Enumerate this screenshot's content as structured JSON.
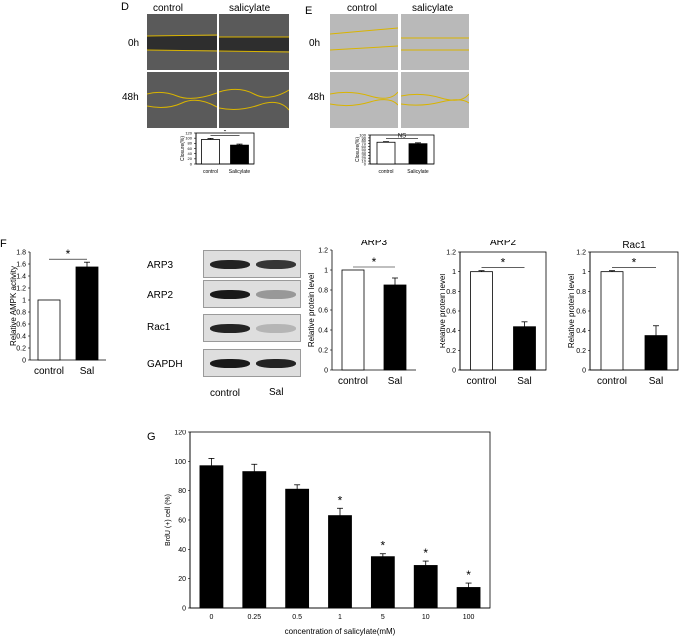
{
  "panel_D": {
    "letter": "D",
    "columns": [
      "control",
      "salicylate"
    ],
    "rows": [
      "0h",
      "48h"
    ]
  },
  "panel_E": {
    "letter": "E",
    "columns": [
      "control",
      "salicylate"
    ],
    "rows": [
      "0h",
      "48h"
    ]
  },
  "panel_F": {
    "letter": "F"
  },
  "panel_G": {
    "letter": "G"
  },
  "blot": {
    "labels": [
      "ARP3",
      "ARP2",
      "Rac1",
      "GAPDH"
    ],
    "lanes": [
      "control",
      "Sal"
    ],
    "intensities": {
      "ARP3": [
        0.95,
        0.85
      ],
      "ARP2": [
        1.0,
        0.35
      ],
      "Rac1": [
        0.95,
        0.2
      ],
      "GAPDH": [
        1.0,
        0.95
      ]
    }
  },
  "colors": {
    "control_bar": "#ffffff",
    "treated_bar": "#000000",
    "boundary_line": "#d9b400"
  },
  "chart_data": [
    {
      "id": "D_closure",
      "type": "bar",
      "categories": [
        "control",
        "Salicylate"
      ],
      "values": [
        95,
        73
      ],
      "errors": [
        4,
        4
      ],
      "ylabel": "Closure(%)",
      "ylim": [
        0,
        120
      ],
      "yticks": [
        "0",
        "20",
        "40",
        "60",
        "80",
        "100",
        "120"
      ],
      "sig": "*"
    },
    {
      "id": "E_closure",
      "type": "bar",
      "categories": [
        "control",
        "Salicylate"
      ],
      "values": [
        75,
        70
      ],
      "errors": [
        2,
        3
      ],
      "ylabel": "Closure(%)",
      "ylim": [
        0,
        100
      ],
      "yticks": [
        "0",
        "10",
        "20",
        "30",
        "40",
        "50",
        "60",
        "70",
        "80",
        "90",
        "100"
      ],
      "sig": "NS"
    },
    {
      "id": "F_ampk",
      "type": "bar",
      "categories": [
        "control",
        "Sal"
      ],
      "values": [
        1.0,
        1.55
      ],
      "errors": [
        0,
        0.08
      ],
      "ylabel": "Relative AMPK activity",
      "ylim": [
        0,
        1.8
      ],
      "yticks": [
        "0",
        "0.2",
        "0.4",
        "0.6",
        "0.8",
        "1",
        "1.2",
        "1.4",
        "1.6",
        "1.8"
      ],
      "sig": "*"
    },
    {
      "id": "F_arp3",
      "type": "bar",
      "title": "ARP3",
      "categories": [
        "control",
        "Sal"
      ],
      "values": [
        1.0,
        0.85
      ],
      "errors": [
        0,
        0.07
      ],
      "ylabel": "Relative protein level",
      "ylim": [
        0,
        1.2
      ],
      "yticks": [
        "0",
        "0.2",
        "0.4",
        "0.6",
        "0.8",
        "1",
        "1.2"
      ],
      "sig": "*"
    },
    {
      "id": "F_arp2",
      "type": "bar",
      "title": "ARP2",
      "categories": [
        "control",
        "Sal"
      ],
      "values": [
        1.0,
        0.44
      ],
      "errors": [
        0.01,
        0.05
      ],
      "ylabel": "Relative protein level",
      "ylim": [
        0,
        1.2
      ],
      "yticks": [
        "0",
        "0.2",
        "0.4",
        "0.6",
        "0.8",
        "1",
        "1.2"
      ],
      "sig": "*"
    },
    {
      "id": "F_rac1",
      "type": "bar",
      "title": "Rac1",
      "categories": [
        "control",
        "Sal"
      ],
      "values": [
        1.0,
        0.35
      ],
      "errors": [
        0.01,
        0.1
      ],
      "ylabel": "Relative protein level",
      "ylim": [
        0,
        1.2
      ],
      "yticks": [
        "0",
        "0.2",
        "0.4",
        "0.6",
        "0.8",
        "1",
        "1.2"
      ],
      "sig": "*"
    },
    {
      "id": "G_brdu",
      "type": "bar",
      "categories": [
        "0",
        "0.25",
        "0.5",
        "1",
        "5",
        "10",
        "100"
      ],
      "values": [
        97,
        93,
        81,
        63,
        35,
        29,
        14
      ],
      "errors": [
        5,
        5,
        3,
        5,
        2,
        3,
        3
      ],
      "sig_marks": [
        "",
        "",
        "",
        "*",
        "*",
        "*",
        "*"
      ],
      "xlabel": "concentration of salicylate(mM)",
      "ylabel": "BrdU (+) cell (%)",
      "ylim": [
        0,
        120
      ],
      "yticks": [
        "0",
        "20",
        "40",
        "60",
        "80",
        "100",
        "120"
      ]
    }
  ]
}
